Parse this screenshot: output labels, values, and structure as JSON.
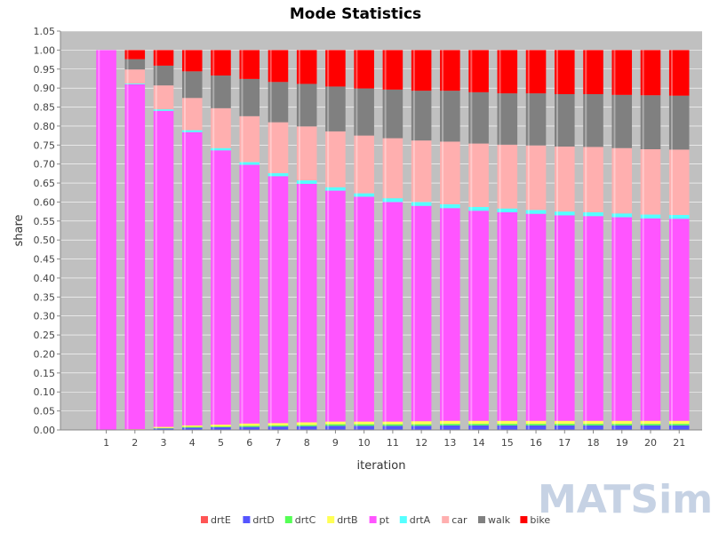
{
  "chart_data": {
    "type": "bar",
    "stacked": true,
    "normalized": true,
    "title": "Mode Statistics",
    "xlabel": "iteration",
    "ylabel": "share",
    "ylim": [
      0,
      1.05
    ],
    "yticks": [
      "0.00",
      "0.05",
      "0.10",
      "0.15",
      "0.20",
      "0.25",
      "0.30",
      "0.35",
      "0.40",
      "0.45",
      "0.50",
      "0.55",
      "0.60",
      "0.65",
      "0.70",
      "0.75",
      "0.80",
      "0.85",
      "0.90",
      "0.95",
      "1.00",
      "1.05"
    ],
    "categories": [
      "1",
      "2",
      "3",
      "4",
      "5",
      "6",
      "7",
      "8",
      "9",
      "10",
      "11",
      "12",
      "13",
      "14",
      "15",
      "16",
      "17",
      "18",
      "19",
      "20",
      "21"
    ],
    "background": "#c0c0c0",
    "grid": true,
    "legend_position": "bottom",
    "series": [
      {
        "name": "drtE",
        "color": "#ff5555",
        "values": [
          0,
          0,
          0.001,
          0.001,
          0.001,
          0.001,
          0.001,
          0.001,
          0.001,
          0.001,
          0.001,
          0.001,
          0.001,
          0.001,
          0.001,
          0.001,
          0.001,
          0.001,
          0.001,
          0.001,
          0.001
        ]
      },
      {
        "name": "drtD",
        "color": "#5555ff",
        "values": [
          0,
          0,
          0.003,
          0.005,
          0.006,
          0.007,
          0.008,
          0.009,
          0.01,
          0.01,
          0.01,
          0.01,
          0.011,
          0.011,
          0.011,
          0.011,
          0.011,
          0.011,
          0.011,
          0.011,
          0.011
        ]
      },
      {
        "name": "drtC",
        "color": "#55ff55",
        "values": [
          0,
          0,
          0.001,
          0.002,
          0.002,
          0.003,
          0.003,
          0.003,
          0.004,
          0.004,
          0.004,
          0.004,
          0.004,
          0.004,
          0.004,
          0.004,
          0.004,
          0.004,
          0.004,
          0.004,
          0.004
        ]
      },
      {
        "name": "drtB",
        "color": "#ffff55",
        "values": [
          0,
          0.002,
          0.003,
          0.004,
          0.005,
          0.006,
          0.006,
          0.007,
          0.007,
          0.007,
          0.007,
          0.008,
          0.008,
          0.008,
          0.008,
          0.008,
          0.008,
          0.008,
          0.008,
          0.008,
          0.008
        ]
      },
      {
        "name": "pt",
        "color": "#ff55ff",
        "values": [
          1.0,
          0.908,
          0.832,
          0.772,
          0.722,
          0.681,
          0.65,
          0.628,
          0.608,
          0.592,
          0.578,
          0.567,
          0.56,
          0.553,
          0.549,
          0.545,
          0.541,
          0.539,
          0.536,
          0.533,
          0.532
        ]
      },
      {
        "name": "drtA",
        "color": "#55ffff",
        "values": [
          0,
          0.002,
          0.004,
          0.005,
          0.006,
          0.007,
          0.008,
          0.009,
          0.009,
          0.009,
          0.01,
          0.01,
          0.01,
          0.01,
          0.01,
          0.01,
          0.01,
          0.01,
          0.01,
          0.01,
          0.01
        ]
      },
      {
        "name": "car",
        "color": "#ffafaf",
        "values": [
          0,
          0.037,
          0.063,
          0.085,
          0.105,
          0.121,
          0.134,
          0.142,
          0.147,
          0.152,
          0.158,
          0.162,
          0.165,
          0.167,
          0.168,
          0.17,
          0.171,
          0.172,
          0.172,
          0.172,
          0.172
        ]
      },
      {
        "name": "walk",
        "color": "#808080",
        "values": [
          0,
          0.027,
          0.052,
          0.07,
          0.086,
          0.098,
          0.106,
          0.112,
          0.118,
          0.124,
          0.128,
          0.131,
          0.134,
          0.135,
          0.135,
          0.137,
          0.138,
          0.139,
          0.14,
          0.142,
          0.142
        ]
      },
      {
        "name": "bike",
        "color": "#ff0000",
        "values": [
          0,
          0.024,
          0.041,
          0.056,
          0.067,
          0.076,
          0.084,
          0.089,
          0.096,
          0.101,
          0.104,
          0.107,
          0.107,
          0.111,
          0.114,
          0.114,
          0.116,
          0.116,
          0.118,
          0.119,
          0.12
        ]
      }
    ]
  },
  "logo": {
    "text": "MATSim"
  }
}
